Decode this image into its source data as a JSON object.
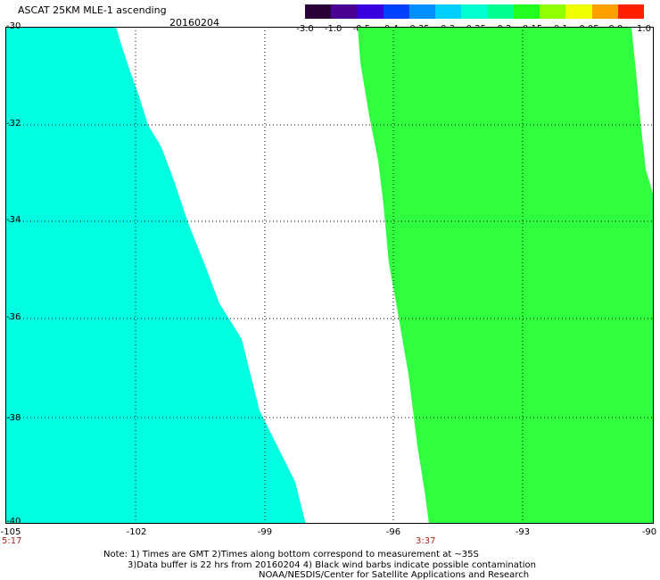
{
  "header": {
    "title": "ASCAT 25KM MLE-1 ascending",
    "date": "20160204"
  },
  "colorbar": {
    "labels": [
      "-3.0",
      "-1.0",
      "-0.5",
      "-0.4",
      "-0.35",
      "-0.3",
      "-0.25",
      "-0.2",
      "-0.15",
      "-0.1",
      "-0.05",
      "0.0",
      "1.0"
    ],
    "colors": [
      "#2a003a",
      "#4a0090",
      "#3a00e0",
      "#0040ff",
      "#0090ff",
      "#00d0ff",
      "#00ffd0",
      "#00ff90",
      "#20ff20",
      "#90ff00",
      "#f0ff00",
      "#ffa000",
      "#ff2000"
    ]
  },
  "map": {
    "lat_labels": [
      "-30",
      "-32",
      "-34",
      "-36",
      "-38",
      "-40"
    ],
    "lon_labels": [
      "-105",
      "-102",
      "-99",
      "-96",
      "-93",
      "-90"
    ],
    "lat_range": [
      -40,
      -30
    ],
    "lon_range": [
      -105,
      -90
    ],
    "grid": true,
    "swath_times": [
      "5:17",
      "3:37"
    ],
    "swath_colors": [
      "#00ffe0",
      "#30ff40"
    ]
  },
  "notes": [
    "Note: 1) Times are GMT 2)Times along bottom correspond to measurement at ~35S",
    "3)Data buffer is 22 hrs from 20160204 4) Black wind barbs indicate possible contamination",
    "NOAA/NESDIS/Center for Satellite Applications and Research"
  ]
}
